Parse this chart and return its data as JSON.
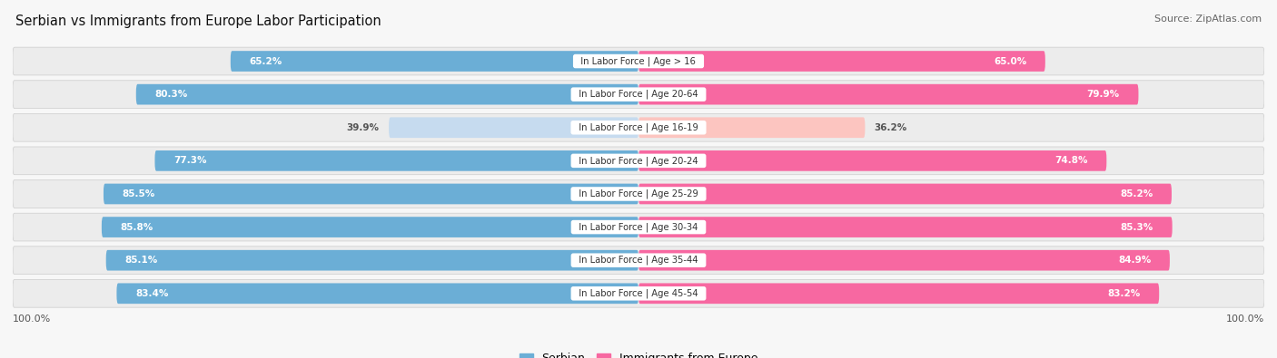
{
  "title": "Serbian vs Immigrants from Europe Labor Participation",
  "source": "Source: ZipAtlas.com",
  "categories": [
    "In Labor Force | Age > 16",
    "In Labor Force | Age 20-64",
    "In Labor Force | Age 16-19",
    "In Labor Force | Age 20-24",
    "In Labor Force | Age 25-29",
    "In Labor Force | Age 30-34",
    "In Labor Force | Age 35-44",
    "In Labor Force | Age 45-54"
  ],
  "serbian_values": [
    65.2,
    80.3,
    39.9,
    77.3,
    85.5,
    85.8,
    85.1,
    83.4
  ],
  "immigrant_values": [
    65.0,
    79.9,
    36.2,
    74.8,
    85.2,
    85.3,
    84.9,
    83.2
  ],
  "serbian_color": "#6baed6",
  "serbian_color_light": "#c6dbef",
  "immigrant_color": "#f768a1",
  "immigrant_color_light": "#fcc5c0",
  "row_bg_color": "#e8e8e8",
  "background_color": "#f7f7f7",
  "bar_label_white": "#ffffff",
  "bar_label_dark": "#555555",
  "legend_serbian": "Serbian",
  "legend_immigrant": "Immigrants from Europe",
  "max_value": 100.0
}
